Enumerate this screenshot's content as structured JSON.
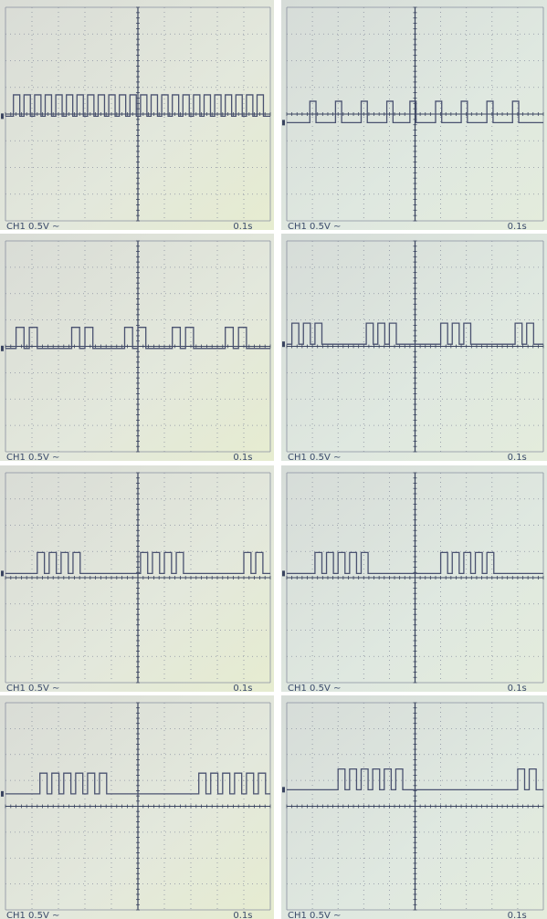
{
  "panels": [
    {
      "channel": "CH1 0.5V ∼",
      "timebase": "0.1s"
    },
    {
      "channel": "CH1 0.5V ∼",
      "timebase": "0.1s"
    },
    {
      "channel": "CH1 0.5V ∼",
      "timebase": "0.1s"
    },
    {
      "channel": "CH1 0.5V ∼",
      "timebase": "0.1s"
    },
    {
      "channel": "CH1 0.5V ∼",
      "timebase": "0.1s"
    },
    {
      "channel": "CH1 0.5V ∼",
      "timebase": "0.1s"
    },
    {
      "channel": "CH1 0.5V ∼",
      "timebase": "0.1s"
    },
    {
      "channel": "CH1 0.5V ∼",
      "timebase": "0.1s"
    }
  ]
}
